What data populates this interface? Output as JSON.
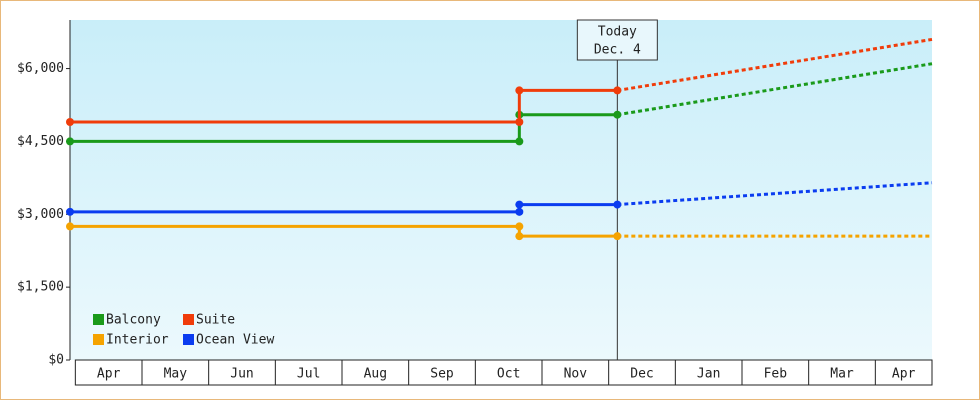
{
  "chart_data": {
    "type": "line",
    "categories": [
      "Apr",
      "May",
      "Jun",
      "Jul",
      "Aug",
      "Sep",
      "Oct",
      "Nov",
      "Dec",
      "Jan",
      "Feb",
      "Mar",
      "Apr"
    ],
    "x": [
      -0.08,
      6.66,
      6.66,
      8.13,
      12.85
    ],
    "today_x": 8.13,
    "annotation": [
      "Today",
      "Dec. 4"
    ],
    "xlim": [
      -0.08,
      12.85
    ],
    "ylim": [
      0,
      7000
    ],
    "yticks": [
      {
        "value": 0,
        "label": "$0"
      },
      {
        "value": 1500,
        "label": "$1,500"
      },
      {
        "value": 3000,
        "label": "$3,000"
      },
      {
        "value": 4500,
        "label": "$4,500"
      },
      {
        "value": 6000,
        "label": "$6,000"
      }
    ],
    "legend": "lower left",
    "series": [
      {
        "name": "Balcony",
        "color": "#1a9a1a",
        "values": [
          4500,
          4500,
          5050,
          5050,
          6100
        ]
      },
      {
        "name": "Suite",
        "color": "#f03c0a",
        "values": [
          4900,
          4900,
          5550,
          5550,
          6600
        ]
      },
      {
        "name": "Interior",
        "color": "#f5a300",
        "values": [
          2750,
          2750,
          2550,
          2550,
          2550
        ]
      },
      {
        "name": "Ocean View",
        "color": "#0a3cf0",
        "values": [
          3050,
          3050,
          3200,
          3200,
          3650
        ]
      }
    ]
  }
}
